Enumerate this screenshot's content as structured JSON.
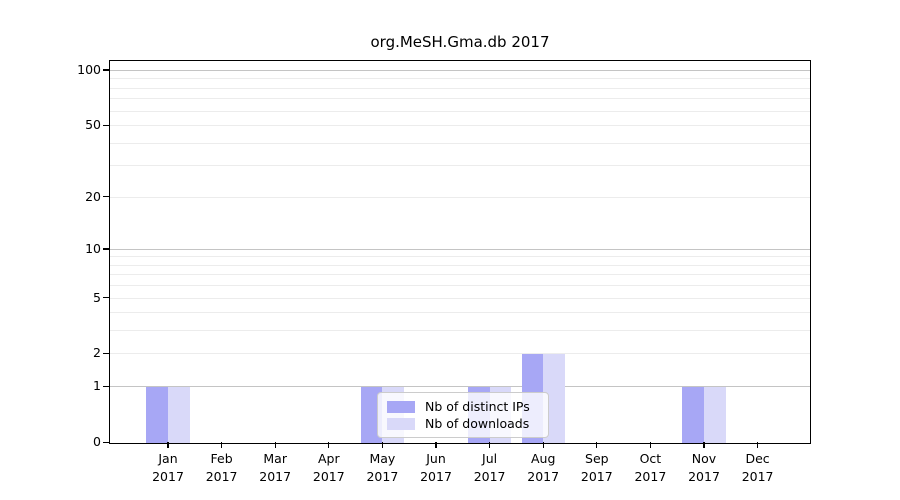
{
  "chart_data": {
    "type": "bar",
    "title": "org.MeSH.Gma.db 2017",
    "x_categories": [
      "Jan",
      "Feb",
      "Mar",
      "Apr",
      "May",
      "Jun",
      "Jul",
      "Aug",
      "Sep",
      "Oct",
      "Nov",
      "Dec"
    ],
    "x_year": "2017",
    "series": [
      {
        "name": "Nb of distinct IPs",
        "color": "#a7a7f5",
        "values": [
          1,
          0,
          0,
          0,
          1,
          0,
          1,
          2,
          0,
          0,
          1,
          0
        ]
      },
      {
        "name": "Nb of downloads",
        "color": "#d9d9f9",
        "values": [
          1,
          0,
          0,
          0,
          1,
          0,
          1,
          2,
          0,
          0,
          1,
          0
        ]
      }
    ],
    "yscale": "log10(1+x)",
    "ylim": [
      0,
      113
    ],
    "ytick_labels": [
      "0",
      "1",
      "2",
      "5",
      "10",
      "20",
      "50",
      "100"
    ],
    "ytick_values": [
      0,
      1,
      2,
      5,
      10,
      20,
      50,
      100
    ],
    "grid": {
      "major_values": [
        1,
        10,
        100
      ],
      "minor_values": [
        2,
        3,
        4,
        5,
        6,
        7,
        8,
        9,
        20,
        30,
        40,
        50,
        60,
        70,
        80,
        90
      ]
    },
    "legend": {
      "position": "lower center"
    },
    "colors": {
      "axis": "#000000",
      "grid_major": "#c4c4c4",
      "grid_minor": "#ececec",
      "background": "#ffffff"
    }
  }
}
